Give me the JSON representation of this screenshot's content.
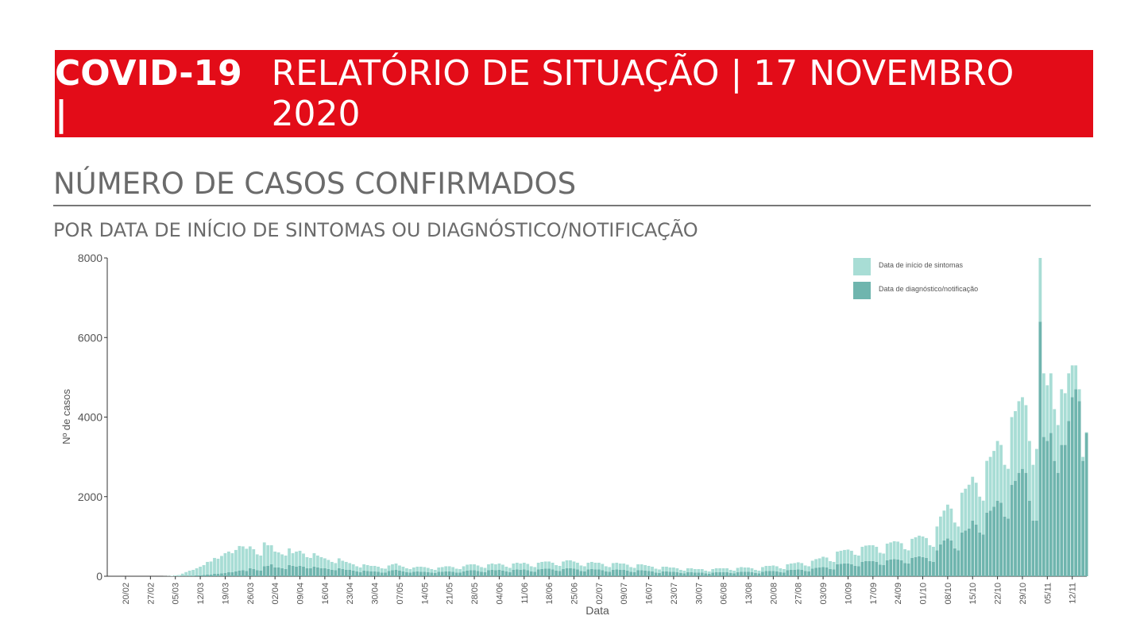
{
  "header": {
    "title_bold": "COVID-19 |",
    "title": "RELATÓRIO DE SITUAÇÃO | 17 NOVEMBRO 2020"
  },
  "section": {
    "heading": "NÚMERO DE CASOS CONFIRMADOS",
    "subheading": "POR DATA DE INÍCIO DE SINTOMAS OU DIAGNÓSTICO/NOTIFICAÇÃO"
  },
  "chart_data": {
    "type": "stacked_bar",
    "x_label": "Data",
    "y_label": "Nº de casos",
    "ylim": [
      0,
      8000
    ],
    "yticks": [
      0,
      2000,
      4000,
      6000,
      8000
    ],
    "legend": "top-right",
    "categories": [
      "20/02",
      null,
      null,
      null,
      null,
      null,
      null,
      "27/02",
      null,
      null,
      null,
      null,
      null,
      null,
      "05/03",
      null,
      null,
      null,
      null,
      null,
      null,
      "12/03",
      null,
      null,
      null,
      null,
      null,
      null,
      "19/03",
      null,
      null,
      null,
      null,
      null,
      null,
      "26/03",
      null,
      null,
      null,
      null,
      null,
      null,
      "02/04",
      null,
      null,
      null,
      null,
      null,
      null,
      "09/04",
      null,
      null,
      null,
      null,
      null,
      null,
      "16/04",
      null,
      null,
      null,
      null,
      null,
      null,
      "23/04",
      null,
      null,
      null,
      null,
      null,
      null,
      "30/04",
      null,
      null,
      null,
      null,
      null,
      null,
      "07/05",
      null,
      null,
      null,
      null,
      null,
      null,
      "14/05",
      null,
      null,
      null,
      null,
      null,
      null,
      "21/05",
      null,
      null,
      null,
      null,
      null,
      null,
      "28/05",
      null,
      null,
      null,
      null,
      null,
      null,
      "04/06",
      null,
      null,
      null,
      null,
      null,
      null,
      "11/06",
      null,
      null,
      null,
      null,
      null,
      null,
      "18/06",
      null,
      null,
      null,
      null,
      null,
      null,
      "25/06",
      null,
      null,
      null,
      null,
      null,
      null,
      "02/07",
      null,
      null,
      null,
      null,
      null,
      null,
      "09/07",
      null,
      null,
      null,
      null,
      null,
      null,
      "16/07",
      null,
      null,
      null,
      null,
      null,
      null,
      "23/07",
      null,
      null,
      null,
      null,
      null,
      null,
      "30/07",
      null,
      null,
      null,
      null,
      null,
      null,
      "06/08",
      null,
      null,
      null,
      null,
      null,
      null,
      "13/08",
      null,
      null,
      null,
      null,
      null,
      null,
      "20/08",
      null,
      null,
      null,
      null,
      null,
      null,
      "27/08",
      null,
      null,
      null,
      null,
      null,
      null,
      "03/09",
      null,
      null,
      null,
      null,
      null,
      null,
      "10/09",
      null,
      null,
      null,
      null,
      null,
      null,
      "17/09",
      null,
      null,
      null,
      null,
      null,
      null,
      "24/09",
      null,
      null,
      null,
      null,
      null,
      null,
      "01/10",
      null,
      null,
      null,
      null,
      null,
      null,
      "08/10",
      null,
      null,
      null,
      null,
      null,
      null,
      "15/10",
      null,
      null,
      null,
      null,
      null,
      null,
      "22/10",
      null,
      null,
      null,
      null,
      null,
      null,
      "29/10",
      null,
      null,
      null,
      null,
      null,
      null,
      "05/11",
      null,
      null,
      null,
      null,
      null,
      null,
      "12/11",
      null,
      null,
      null,
      null
    ],
    "series": [
      {
        "name": "Data de início de sintomas",
        "color": "#a8ddd5",
        "values": [
          0,
          0,
          0,
          0,
          0,
          0,
          0,
          0,
          0,
          0,
          0,
          2,
          5,
          10,
          20,
          30,
          60,
          100,
          130,
          150,
          180,
          220,
          250,
          320,
          330,
          400,
          380,
          440,
          500,
          520,
          480,
          540,
          620,
          600,
          560,
          550,
          500,
          400,
          380,
          600,
          520,
          480,
          400,
          380,
          350,
          340,
          420,
          320,
          380,
          380,
          330,
          280,
          260,
          340,
          300,
          280,
          250,
          230,
          200,
          180,
          250,
          210,
          200,
          170,
          160,
          130,
          120,
          160,
          150,
          140,
          140,
          130,
          110,
          100,
          140,
          150,
          160,
          130,
          120,
          100,
          90,
          110,
          120,
          130,
          120,
          110,
          90,
          80,
          110,
          120,
          130,
          130,
          120,
          100,
          90,
          130,
          150,
          150,
          150,
          140,
          120,
          110,
          150,
          160,
          150,
          160,
          150,
          120,
          110,
          160,
          170,
          160,
          170,
          160,
          130,
          120,
          170,
          180,
          180,
          180,
          170,
          140,
          130,
          190,
          200,
          200,
          180,
          170,
          140,
          130,
          170,
          180,
          170,
          170,
          160,
          130,
          120,
          170,
          170,
          160,
          160,
          150,
          120,
          110,
          150,
          150,
          140,
          130,
          120,
          100,
          90,
          120,
          120,
          110,
          110,
          100,
          80,
          70,
          100,
          100,
          90,
          90,
          90,
          70,
          60,
          90,
          100,
          100,
          100,
          100,
          80,
          70,
          110,
          120,
          110,
          110,
          100,
          80,
          70,
          120,
          130,
          130,
          140,
          130,
          100,
          90,
          150,
          160,
          170,
          180,
          170,
          140,
          130,
          200,
          220,
          230,
          260,
          250,
          200,
          190,
          320,
          330,
          340,
          350,
          340,
          280,
          270,
          380,
          390,
          400,
          400,
          380,
          300,
          290,
          420,
          430,
          450,
          450,
          430,
          350,
          330,
          480,
          500,
          520,
          520,
          500,
          400,
          380,
          600,
          700,
          750,
          850,
          800,
          650,
          600,
          1000,
          1050,
          1100,
          1100,
          1050,
          900,
          850,
          1300,
          1350,
          1400,
          1500,
          1450,
          1300,
          1250,
          1700,
          1750,
          1800,
          1800,
          1700,
          1500,
          1400,
          1800,
          1600,
          1600,
          1400,
          1500,
          1300,
          1200,
          1400,
          1300,
          1200,
          800,
          600,
          300,
          100,
          20
        ]
      },
      {
        "name": "Data de diagnóstico/notificação",
        "color": "#6fb5ae",
        "values": [
          0,
          0,
          0,
          0,
          0,
          0,
          0,
          0,
          0,
          0,
          0,
          0,
          0,
          0,
          0,
          0,
          5,
          5,
          10,
          10,
          20,
          20,
          30,
          40,
          40,
          60,
          60,
          70,
          80,
          100,
          100,
          120,
          140,
          150,
          130,
          200,
          180,
          150,
          140,
          250,
          260,
          300,
          220,
          220,
          200,
          180,
          280,
          260,
          240,
          260,
          240,
          200,
          200,
          240,
          220,
          200,
          200,
          180,
          160,
          150,
          200,
          180,
          160,
          160,
          140,
          120,
          100,
          140,
          130,
          120,
          120,
          110,
          90,
          90,
          130,
          150,
          160,
          140,
          120,
          100,
          90,
          110,
          120,
          110,
          110,
          100,
          90,
          80,
          110,
          110,
          120,
          120,
          110,
          90,
          90,
          120,
          140,
          150,
          150,
          130,
          110,
          100,
          150,
          160,
          150,
          160,
          140,
          120,
          100,
          160,
          170,
          160,
          170,
          150,
          120,
          110,
          170,
          180,
          190,
          190,
          170,
          140,
          130,
          180,
          200,
          200,
          190,
          170,
          130,
          120,
          170,
          180,
          170,
          170,
          150,
          120,
          110,
          160,
          170,
          160,
          160,
          140,
          110,
          100,
          150,
          150,
          140,
          130,
          120,
          90,
          80,
          120,
          120,
          110,
          110,
          100,
          80,
          70,
          100,
          100,
          90,
          90,
          90,
          70,
          60,
          90,
          100,
          100,
          100,
          100,
          80,
          70,
          100,
          110,
          110,
          110,
          100,
          80,
          70,
          110,
          130,
          130,
          130,
          120,
          100,
          90,
          150,
          160,
          160,
          170,
          160,
          130,
          120,
          190,
          210,
          220,
          230,
          220,
          180,
          170,
          300,
          310,
          320,
          320,
          300,
          260,
          250,
          360,
          380,
          380,
          380,
          360,
          290,
          280,
          400,
          420,
          430,
          420,
          400,
          330,
          320,
          460,
          480,
          500,
          480,
          460,
          380,
          360,
          650,
          800,
          900,
          950,
          900,
          700,
          650,
          1100,
          1150,
          1200,
          1400,
          1300,
          1100,
          1050,
          1600,
          1650,
          1750,
          1900,
          1850,
          1500,
          1450,
          2300,
          2400,
          2600,
          2700,
          2600,
          1900,
          1400,
          1400,
          6400,
          3500,
          3400,
          3600,
          2900,
          2600,
          3300,
          3300,
          3900,
          4500,
          4700,
          4400,
          2900,
          3600
        ]
      }
    ]
  }
}
